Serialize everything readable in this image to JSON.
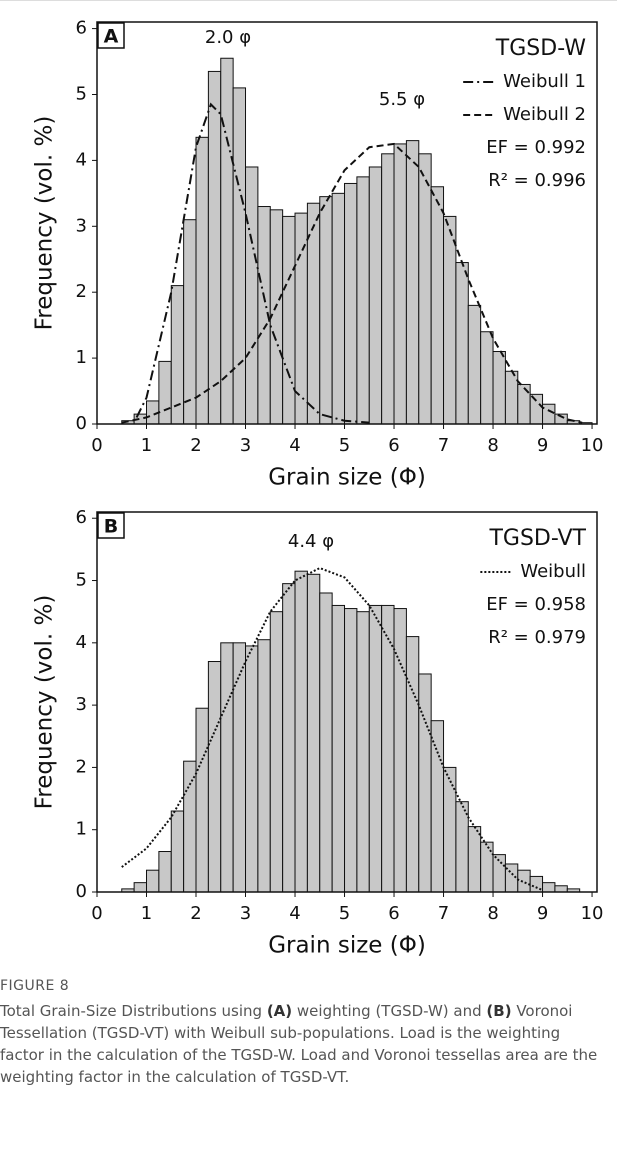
{
  "chart_data": [
    {
      "type": "histogram",
      "panel_label": "A",
      "legend_title": "TGSD-W",
      "annotations": [
        "2.0 φ",
        "5.5 φ"
      ],
      "stats": [
        "EF = 0.992",
        "R² = 0.996"
      ],
      "xlabel": "Grain size (Φ)",
      "ylabel": "Frequency (vol. %)",
      "xlim": [
        0,
        10.1
      ],
      "ylim": [
        0,
        6.1
      ],
      "xticks": [
        0,
        1,
        2,
        3,
        4,
        5,
        6,
        7,
        8,
        9,
        10
      ],
      "yticks": [
        0,
        1,
        2,
        3,
        4,
        5,
        6
      ],
      "color": "#c8c8c8",
      "bins": [
        0.5,
        0.75,
        1.0,
        1.25,
        1.5,
        1.75,
        2.0,
        2.25,
        2.5,
        2.75,
        3.0,
        3.25,
        3.5,
        3.75,
        4.0,
        4.25,
        4.5,
        4.75,
        5.0,
        5.25,
        5.5,
        5.75,
        6.0,
        6.25,
        6.5,
        6.75,
        7.0,
        7.25,
        7.5,
        7.75,
        8.0,
        8.25,
        8.5,
        8.75,
        9.0,
        9.25,
        9.5,
        9.75,
        10.0
      ],
      "values": [
        0.05,
        0.15,
        0.35,
        0.95,
        2.1,
        3.1,
        4.35,
        5.35,
        5.55,
        5.1,
        3.9,
        3.3,
        3.25,
        3.15,
        3.2,
        3.35,
        3.45,
        3.5,
        3.65,
        3.75,
        3.9,
        4.1,
        4.25,
        4.3,
        4.1,
        3.6,
        3.15,
        2.45,
        1.8,
        1.4,
        1.1,
        0.8,
        0.6,
        0.45,
        0.3,
        0.15,
        0.05,
        0.02
      ],
      "series": [
        {
          "name": "Weibull 1",
          "color": "#111111",
          "dash": "dashdot",
          "x": [
            0.8,
            1.0,
            1.5,
            2.0,
            2.3,
            2.5,
            3.0,
            3.5,
            4.0,
            4.5,
            5.0,
            5.5
          ],
          "values": [
            0.1,
            0.4,
            2.0,
            4.2,
            4.85,
            4.7,
            3.2,
            1.5,
            0.5,
            0.15,
            0.05,
            0.02
          ]
        },
        {
          "name": "Weibull 2",
          "color": "#111111",
          "dash": "dashed",
          "x": [
            0.5,
            1,
            1.5,
            2,
            2.5,
            3,
            3.5,
            4,
            4.5,
            5,
            5.5,
            6,
            6.5,
            7,
            7.5,
            8,
            8.5,
            9,
            9.5,
            9.8
          ],
          "values": [
            0.02,
            0.1,
            0.25,
            0.4,
            0.65,
            1.0,
            1.6,
            2.4,
            3.2,
            3.85,
            4.2,
            4.25,
            3.9,
            3.2,
            2.2,
            1.3,
            0.65,
            0.25,
            0.07,
            0.02
          ]
        }
      ]
    },
    {
      "type": "histogram",
      "panel_label": "B",
      "legend_title": "TGSD-VT",
      "annotations": [
        "4.4 φ"
      ],
      "stats": [
        "EF = 0.958",
        "R² = 0.979"
      ],
      "xlabel": "Grain size (Φ)",
      "ylabel": "Frequency (vol. %)",
      "xlim": [
        0,
        10.1
      ],
      "ylim": [
        0,
        6.1
      ],
      "xticks": [
        0,
        1,
        2,
        3,
        4,
        5,
        6,
        7,
        8,
        9,
        10
      ],
      "yticks": [
        0,
        1,
        2,
        3,
        4,
        5,
        6
      ],
      "color": "#c8c8c8",
      "bins": [
        0.5,
        0.75,
        1.0,
        1.25,
        1.5,
        1.75,
        2.0,
        2.25,
        2.5,
        2.75,
        3.0,
        3.25,
        3.5,
        3.75,
        4.0,
        4.25,
        4.5,
        4.75,
        5.0,
        5.25,
        5.5,
        5.75,
        6.0,
        6.25,
        6.5,
        6.75,
        7.0,
        7.25,
        7.5,
        7.75,
        8.0,
        8.25,
        8.5,
        8.75,
        9.0,
        9.25,
        9.5,
        9.75
      ],
      "values": [
        0.05,
        0.15,
        0.35,
        0.65,
        1.3,
        2.1,
        2.95,
        3.7,
        4.0,
        4.0,
        3.95,
        4.05,
        4.5,
        4.95,
        5.15,
        5.1,
        4.8,
        4.6,
        4.55,
        4.5,
        4.6,
        4.6,
        4.55,
        4.1,
        3.5,
        2.75,
        2.0,
        1.45,
        1.05,
        0.8,
        0.6,
        0.45,
        0.35,
        0.25,
        0.15,
        0.1,
        0.05
      ],
      "series": [
        {
          "name": "Weibull",
          "color": "#111111",
          "dash": "dotted",
          "x": [
            0.5,
            1,
            1.5,
            2,
            2.5,
            3,
            3.5,
            4,
            4.5,
            5,
            5.5,
            6,
            6.5,
            7,
            7.5,
            8,
            8.5,
            9
          ],
          "values": [
            0.4,
            0.7,
            1.2,
            1.9,
            2.8,
            3.7,
            4.5,
            5.0,
            5.2,
            5.05,
            4.6,
            3.9,
            3.0,
            2.0,
            1.2,
            0.6,
            0.2,
            0.03
          ]
        }
      ]
    }
  ],
  "caption": {
    "label": "FIGURE 8",
    "parts": [
      "Total Grain-Size Distributions using ",
      "(A)",
      " weighting (TGSD-W) and ",
      "(B)",
      " Voronoi Tessellation (TGSD-VT) with Weibull sub-populations. Load is the weighting factor in the calculation of the TGSD-W. Load and Voronoi tessellas area are the weighting factor in the calculation of TGSD-VT."
    ]
  }
}
